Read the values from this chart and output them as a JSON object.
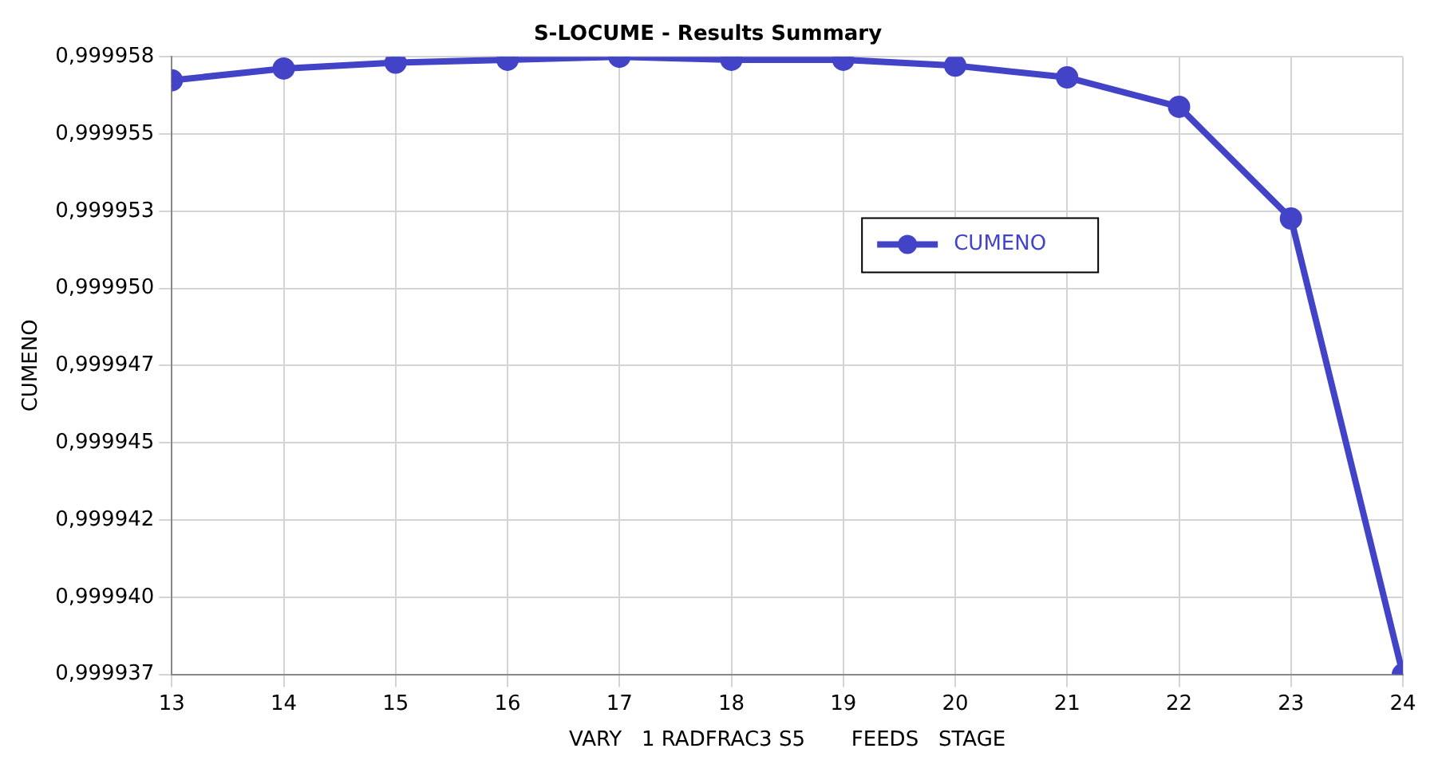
{
  "chart_data": {
    "type": "line",
    "title": "S-LOCUME - Results Summary",
    "xlabel": "VARY   1 RADFRAC3 S5       FEEDS   STAGE",
    "ylabel": "CUMENO",
    "x": [
      13,
      14,
      15,
      16,
      17,
      18,
      19,
      20,
      21,
      22,
      23,
      24
    ],
    "series": [
      {
        "name": "CUMENO",
        "color": "#4343c8",
        "values": [
          0.9999572,
          0.9999576,
          0.9999578,
          0.9999579,
          0.999958,
          0.9999579,
          0.9999579,
          0.9999577,
          0.9999573,
          0.9999563,
          0.9999525,
          0.999937
        ]
      }
    ],
    "xlim": [
      13,
      24
    ],
    "xticks": [
      13,
      14,
      15,
      16,
      17,
      18,
      19,
      20,
      21,
      22,
      23,
      24
    ],
    "ylim": [
      0.999937,
      0.999958
    ],
    "yticks": [
      {
        "value": 0.999937,
        "label": "0,999937"
      },
      {
        "value": 0.999939625,
        "label": "0,999940"
      },
      {
        "value": 0.99994225,
        "label": "0,999942"
      },
      {
        "value": 0.999944875,
        "label": "0,999945"
      },
      {
        "value": 0.9999475,
        "label": "0,999947"
      },
      {
        "value": 0.999950125,
        "label": "0,999950"
      },
      {
        "value": 0.99995275,
        "label": "0,999953"
      },
      {
        "value": 0.999955375,
        "label": "0,999955"
      },
      {
        "value": 0.999958,
        "label": "0,999958"
      }
    ],
    "grid": true,
    "legend": "right",
    "marker": "circle",
    "line_style": "solid"
  }
}
